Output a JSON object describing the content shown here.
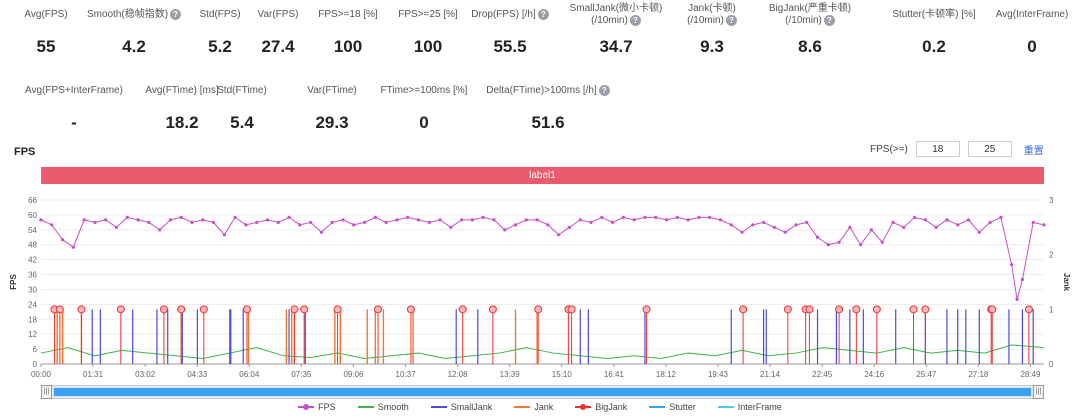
{
  "stats_row1": [
    {
      "label": "Avg(FPS)",
      "value": "55",
      "help": false
    },
    {
      "label": "Smooth(稳帧指数)",
      "value": "4.2",
      "help": true
    },
    {
      "label": "Std(FPS)",
      "value": "5.2",
      "help": false
    },
    {
      "label": "Var(FPS)",
      "value": "27.4",
      "help": false
    },
    {
      "label": "FPS>=18 [%]",
      "value": "100",
      "help": false
    },
    {
      "label": "FPS>=25 [%]",
      "value": "100",
      "help": false
    },
    {
      "label": "Drop(FPS) [/h]",
      "value": "55.5",
      "help": true
    },
    {
      "label": "SmallJank(微小卡顿)",
      "label2": "(/10min)",
      "value": "34.7",
      "help": true
    },
    {
      "label": "Jank(卡顿)",
      "label2": "(/10min)",
      "value": "9.3",
      "help": true
    },
    {
      "label": "BigJank(严重卡顿)",
      "label2": "(/10min)",
      "value": "8.6",
      "help": true
    },
    {
      "label": "Stutter(卡顿率) [%]",
      "value": "0.2",
      "help": false
    },
    {
      "label": "Avg(InterFrame)",
      "value": "0",
      "help": false
    }
  ],
  "stats_row2": [
    {
      "label": "Avg(FPS+InterFrame)",
      "value": "-",
      "help": false
    },
    {
      "label": "Avg(FTime) [ms]",
      "value": "18.2",
      "help": false
    },
    {
      "label": "Std(FTime)",
      "value": "5.4",
      "help": false
    },
    {
      "label": "Var(FTime)",
      "value": "29.3",
      "help": false
    },
    {
      "label": "FTime>=100ms [%]",
      "value": "0",
      "help": false
    },
    {
      "label": "Delta(FTime)>100ms [/h]",
      "value": "51.6",
      "help": true
    }
  ],
  "chart_title": "FPS",
  "fps_threshold": {
    "label": "FPS(>=)",
    "value1": "18",
    "value2": "25",
    "reset": "重置"
  },
  "label_band": "label1",
  "colors": {
    "fps": "#c94fc9",
    "smooth": "#3cb54a",
    "smalljank": "#4b4bdf",
    "jank": "#f07a2a",
    "bigjank": "#ee3333",
    "stutter": "#3aa2f0",
    "interframe": "#3fd0e0"
  },
  "chart_data": {
    "type": "line",
    "title": "FPS",
    "xlabel": "",
    "ylabel": "FPS",
    "y2label": "Jank",
    "ylim": [
      0,
      66
    ],
    "y2lim": [
      0,
      3
    ],
    "yticks": [
      0,
      6,
      12,
      18,
      24,
      30,
      36,
      42,
      48,
      54,
      60,
      66
    ],
    "y2ticks": [
      0,
      1,
      2,
      3
    ],
    "xlim_seconds": [
      0,
      1860
    ],
    "xticks": [
      "00:00",
      "01:31",
      "03:02",
      "04:33",
      "06:04",
      "07:35",
      "09:06",
      "10:37",
      "12:08",
      "13:39",
      "15:10",
      "16:41",
      "18:12",
      "19:43",
      "21:14",
      "22:45",
      "24:16",
      "25:47",
      "27:18",
      "28:49"
    ],
    "legend": [
      "FPS",
      "Smooth",
      "SmallJank",
      "Jank",
      "BigJank",
      "Stutter",
      "InterFrame"
    ],
    "legend_position": "bottom",
    "series": [
      {
        "name": "FPS",
        "axis": "left",
        "points": [
          [
            0,
            58
          ],
          [
            20,
            56
          ],
          [
            40,
            50
          ],
          [
            60,
            47
          ],
          [
            80,
            58
          ],
          [
            100,
            57
          ],
          [
            120,
            58
          ],
          [
            140,
            55
          ],
          [
            160,
            59
          ],
          [
            180,
            58
          ],
          [
            200,
            57
          ],
          [
            220,
            54
          ],
          [
            240,
            58
          ],
          [
            260,
            59
          ],
          [
            280,
            57
          ],
          [
            300,
            58
          ],
          [
            320,
            57
          ],
          [
            340,
            52
          ],
          [
            360,
            59
          ],
          [
            380,
            56
          ],
          [
            400,
            57
          ],
          [
            420,
            58
          ],
          [
            440,
            57
          ],
          [
            460,
            59
          ],
          [
            480,
            56
          ],
          [
            500,
            57
          ],
          [
            520,
            53
          ],
          [
            540,
            57
          ],
          [
            560,
            58
          ],
          [
            580,
            56
          ],
          [
            600,
            57
          ],
          [
            620,
            59
          ],
          [
            640,
            57
          ],
          [
            660,
            58
          ],
          [
            680,
            59
          ],
          [
            700,
            58
          ],
          [
            720,
            57
          ],
          [
            740,
            58
          ],
          [
            760,
            55
          ],
          [
            780,
            58
          ],
          [
            800,
            58
          ],
          [
            820,
            59
          ],
          [
            840,
            58
          ],
          [
            860,
            54
          ],
          [
            880,
            56
          ],
          [
            900,
            58
          ],
          [
            920,
            58
          ],
          [
            940,
            56
          ],
          [
            960,
            52
          ],
          [
            980,
            55
          ],
          [
            1000,
            58
          ],
          [
            1020,
            57
          ],
          [
            1040,
            59
          ],
          [
            1060,
            57
          ],
          [
            1080,
            59
          ],
          [
            1100,
            58
          ],
          [
            1120,
            59
          ],
          [
            1140,
            59
          ],
          [
            1160,
            58
          ],
          [
            1180,
            59
          ],
          [
            1200,
            58
          ],
          [
            1220,
            59
          ],
          [
            1240,
            59
          ],
          [
            1260,
            58
          ],
          [
            1280,
            56
          ],
          [
            1300,
            53
          ],
          [
            1320,
            56
          ],
          [
            1340,
            57
          ],
          [
            1360,
            55
          ],
          [
            1380,
            53
          ],
          [
            1400,
            56
          ],
          [
            1420,
            57
          ],
          [
            1440,
            51
          ],
          [
            1460,
            48
          ],
          [
            1480,
            49
          ],
          [
            1500,
            55
          ],
          [
            1520,
            48
          ],
          [
            1540,
            54
          ],
          [
            1560,
            49
          ],
          [
            1580,
            57
          ],
          [
            1600,
            55
          ],
          [
            1620,
            59
          ],
          [
            1640,
            58
          ],
          [
            1660,
            55
          ],
          [
            1680,
            58
          ],
          [
            1700,
            56
          ],
          [
            1720,
            58
          ],
          [
            1740,
            53
          ],
          [
            1760,
            57
          ],
          [
            1780,
            59
          ],
          [
            1800,
            40
          ],
          [
            1810,
            26
          ],
          [
            1820,
            34
          ],
          [
            1840,
            57
          ],
          [
            1860,
            56
          ]
        ]
      },
      {
        "name": "Smooth",
        "axis": "right",
        "points": [
          [
            0,
            0.2
          ],
          [
            50,
            0.3
          ],
          [
            100,
            0.15
          ],
          [
            150,
            0.25
          ],
          [
            200,
            0.2
          ],
          [
            250,
            0.15
          ],
          [
            300,
            0.1
          ],
          [
            350,
            0.2
          ],
          [
            400,
            0.3
          ],
          [
            450,
            0.15
          ],
          [
            500,
            0.12
          ],
          [
            550,
            0.2
          ],
          [
            600,
            0.1
          ],
          [
            650,
            0.15
          ],
          [
            700,
            0.2
          ],
          [
            750,
            0.1
          ],
          [
            800,
            0.15
          ],
          [
            850,
            0.2
          ],
          [
            900,
            0.3
          ],
          [
            950,
            0.2
          ],
          [
            1000,
            0.15
          ],
          [
            1050,
            0.1
          ],
          [
            1100,
            0.15
          ],
          [
            1150,
            0.1
          ],
          [
            1200,
            0.2
          ],
          [
            1250,
            0.15
          ],
          [
            1300,
            0.25
          ],
          [
            1350,
            0.15
          ],
          [
            1400,
            0.2
          ],
          [
            1450,
            0.3
          ],
          [
            1500,
            0.25
          ],
          [
            1550,
            0.2
          ],
          [
            1600,
            0.3
          ],
          [
            1650,
            0.2
          ],
          [
            1700,
            0.25
          ],
          [
            1750,
            0.2
          ],
          [
            1800,
            0.35
          ],
          [
            1860,
            0.3
          ]
        ]
      },
      {
        "name": "SmallJank",
        "axis": "right",
        "times": [
          40,
          95,
          110,
          170,
          215,
          235,
          262,
          290,
          350,
          352,
          375,
          460,
          470,
          490,
          770,
          810,
          1000,
          1015,
          1120,
          1280,
          1340,
          1345,
          1440,
          1475,
          1500,
          1525,
          1585,
          1640,
          1680,
          1700,
          1715,
          1740,
          1795,
          1820,
          1840
        ]
      },
      {
        "name": "Jank",
        "axis": "right",
        "times": [
          30,
          40,
          75,
          260,
          385,
          455,
          465,
          545,
          555,
          605,
          620,
          635,
          690,
          880,
          920
        ]
      },
      {
        "name": "BigJank",
        "axis": "right",
        "times": [
          25,
          35,
          75,
          148,
          228,
          260,
          302,
          382,
          470,
          488,
          550,
          625,
          686,
          782,
          838,
          922,
          978,
          984,
          1123,
          1302,
          1385,
          1418,
          1425,
          1480,
          1512,
          1550,
          1618,
          1640,
          1762,
          1764,
          1832
        ]
      },
      {
        "name": "Stutter",
        "axis": "right",
        "points": []
      },
      {
        "name": "InterFrame",
        "axis": "right",
        "points": []
      }
    ]
  }
}
